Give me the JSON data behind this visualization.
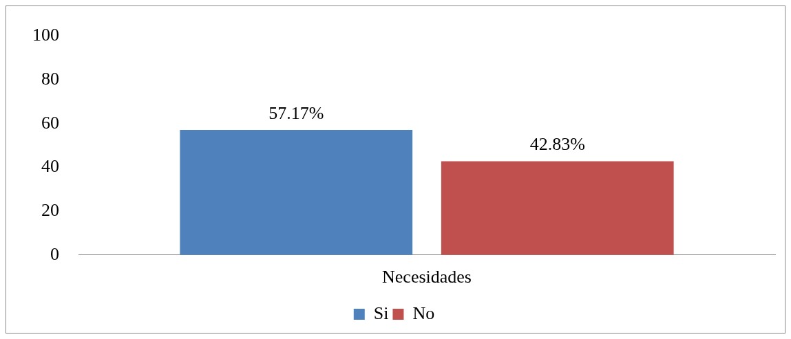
{
  "chart_data": {
    "type": "bar",
    "categories": [
      "Necesidades"
    ],
    "series": [
      {
        "name": "Si",
        "color": "#4f81bd",
        "values": [
          57.17
        ],
        "value_labels": [
          "57.17%"
        ]
      },
      {
        "name": "No",
        "color": "#c0504d",
        "values": [
          42.83
        ],
        "value_labels": [
          "42.83%"
        ]
      }
    ],
    "ylim": [
      0,
      100
    ],
    "yticks": [
      0,
      20,
      40,
      60,
      80,
      100
    ],
    "grid": false,
    "legend": "bottom"
  }
}
